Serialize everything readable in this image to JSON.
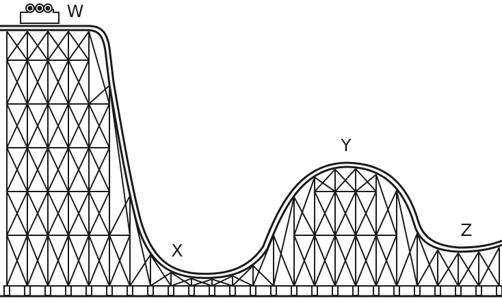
{
  "diagram": {
    "labels": {
      "w": "W",
      "x": "X",
      "y": "Y",
      "z": "Z"
    },
    "colors": {
      "stroke": "#1a1a1a",
      "background": "#ffffff"
    },
    "icons": {
      "car": "coaster-car-icon"
    }
  }
}
